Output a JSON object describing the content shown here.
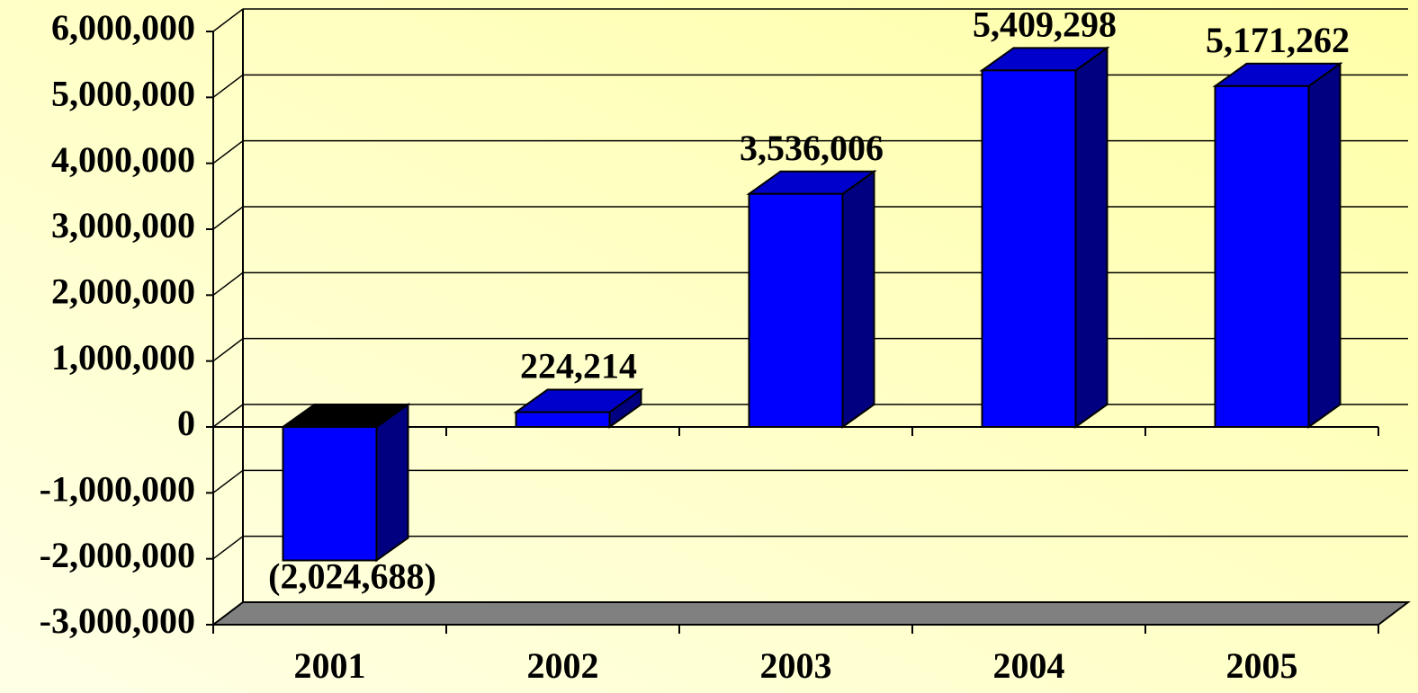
{
  "chart_data": {
    "type": "bar3d",
    "categories": [
      "2001",
      "2002",
      "2003",
      "2004",
      "2005"
    ],
    "values": [
      -2024688,
      224214,
      3536006,
      5409298,
      5171262
    ],
    "value_labels": [
      "(2,024,688)",
      "224,214",
      "3,536,006",
      "5,409,298",
      "5,171,262"
    ],
    "color": "#0000ff",
    "ylim": [
      -3000000,
      6000000
    ],
    "yticks": [
      {
        "value": -3000000,
        "label": "-3,000,000"
      },
      {
        "value": -2000000,
        "label": "-2,000,000"
      },
      {
        "value": -1000000,
        "label": "-1,000,000"
      },
      0,
      {
        "value": 1000000,
        "label": "1,000,000"
      },
      {
        "value": 2000000,
        "label": "2,000,000"
      },
      {
        "value": 3000000,
        "label": "3,000,000"
      },
      {
        "value": 4000000,
        "label": "4,000,000"
      },
      {
        "value": 5000000,
        "label": "5,000,000"
      },
      {
        "value": 6000000,
        "label": "6,000,000"
      }
    ],
    "grid": true
  }
}
